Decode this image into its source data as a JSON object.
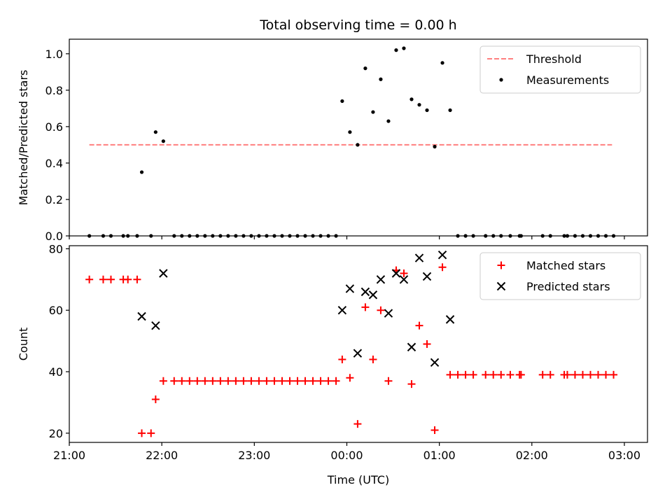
{
  "title": "Total observing time = 0.00 h",
  "chart_data": [
    {
      "type": "scatter",
      "ylabel": "Matched/Predicted stars",
      "ylim": [
        0,
        1.08
      ],
      "yticks": [
        "0.0",
        "0.2",
        "0.4",
        "0.6",
        "0.8",
        "1.0"
      ],
      "ytick_values": [
        0,
        0.2,
        0.4,
        0.6,
        0.8,
        1.0
      ],
      "xlim_hours": [
        21.0,
        27.25
      ],
      "legend_position": "top-right",
      "threshold": {
        "name": "Threshold",
        "x": [
          "21:13",
          "02:52"
        ],
        "y": 0.5,
        "color": "#ff7f7f",
        "style": "dashed"
      },
      "series": [
        {
          "name": "Measurements",
          "color": "#000000",
          "marker": "dot",
          "points": [
            [
              "21:13",
              0
            ],
            [
              "21:22",
              0
            ],
            [
              "21:27",
              0
            ],
            [
              "21:35",
              0
            ],
            [
              "21:38",
              0
            ],
            [
              "21:44",
              0
            ],
            [
              "21:47",
              0.35
            ],
            [
              "21:53",
              0
            ],
            [
              "21:56",
              0.57
            ],
            [
              "22:01",
              0.52
            ],
            [
              "22:08",
              0
            ],
            [
              "22:13",
              0
            ],
            [
              "22:18",
              0
            ],
            [
              "22:23",
              0
            ],
            [
              "22:28",
              0
            ],
            [
              "22:33",
              0
            ],
            [
              "22:38",
              0
            ],
            [
              "22:43",
              0
            ],
            [
              "22:48",
              0
            ],
            [
              "22:53",
              0
            ],
            [
              "22:58",
              0
            ],
            [
              "23:03",
              0
            ],
            [
              "23:08",
              0
            ],
            [
              "23:13",
              0
            ],
            [
              "23:18",
              0
            ],
            [
              "23:23",
              0
            ],
            [
              "23:28",
              0
            ],
            [
              "23:33",
              0
            ],
            [
              "23:38",
              0
            ],
            [
              "23:43",
              0
            ],
            [
              "23:48",
              0
            ],
            [
              "23:53",
              0
            ],
            [
              "23:57",
              0.74
            ],
            [
              "00:02",
              0.57
            ],
            [
              "00:07",
              0.5
            ],
            [
              "00:12",
              0.92
            ],
            [
              "00:17",
              0.68
            ],
            [
              "00:22",
              0.86
            ],
            [
              "00:27",
              0.63
            ],
            [
              "00:32",
              1.02
            ],
            [
              "00:37",
              1.03
            ],
            [
              "00:42",
              0.75
            ],
            [
              "00:47",
              0.72
            ],
            [
              "00:52",
              0.69
            ],
            [
              "00:57",
              0.49
            ],
            [
              "01:02",
              0.95
            ],
            [
              "01:07",
              0.69
            ],
            [
              "01:12",
              0
            ],
            [
              "01:17",
              0
            ],
            [
              "01:22",
              0
            ],
            [
              "01:30",
              0
            ],
            [
              "01:35",
              0
            ],
            [
              "01:40",
              0
            ],
            [
              "01:46",
              0
            ],
            [
              "01:52",
              0
            ],
            [
              "01:53",
              0
            ],
            [
              "02:07",
              0
            ],
            [
              "02:12",
              0
            ],
            [
              "02:21",
              0
            ],
            [
              "02:23",
              0
            ],
            [
              "02:28",
              0
            ],
            [
              "02:33",
              0
            ],
            [
              "02:38",
              0
            ],
            [
              "02:43",
              0
            ],
            [
              "02:48",
              0
            ],
            [
              "02:53",
              0
            ]
          ]
        }
      ]
    },
    {
      "type": "scatter",
      "ylabel": "Count",
      "xlabel": "Time (UTC)",
      "ylim": [
        17,
        81
      ],
      "yticks": [
        "20",
        "40",
        "60",
        "80"
      ],
      "ytick_values": [
        20,
        40,
        60,
        80
      ],
      "xlim_hours": [
        21.0,
        27.25
      ],
      "xticks": [
        "21:00",
        "22:00",
        "23:00",
        "00:00",
        "01:00",
        "02:00",
        "03:00"
      ],
      "xtick_hours": [
        21,
        22,
        23,
        24,
        25,
        26,
        27
      ],
      "legend_position": "top-right",
      "series": [
        {
          "name": "Matched stars",
          "color": "#ff0000",
          "marker": "plus",
          "points": [
            [
              "21:13",
              70
            ],
            [
              "21:22",
              70
            ],
            [
              "21:27",
              70
            ],
            [
              "21:35",
              70
            ],
            [
              "21:38",
              70
            ],
            [
              "21:44",
              70
            ],
            [
              "21:47",
              20
            ],
            [
              "21:53",
              20
            ],
            [
              "21:56",
              31
            ],
            [
              "22:01",
              37
            ],
            [
              "22:08",
              37
            ],
            [
              "22:13",
              37
            ],
            [
              "22:18",
              37
            ],
            [
              "22:23",
              37
            ],
            [
              "22:28",
              37
            ],
            [
              "22:33",
              37
            ],
            [
              "22:38",
              37
            ],
            [
              "22:43",
              37
            ],
            [
              "22:48",
              37
            ],
            [
              "22:53",
              37
            ],
            [
              "22:58",
              37
            ],
            [
              "23:03",
              37
            ],
            [
              "23:08",
              37
            ],
            [
              "23:13",
              37
            ],
            [
              "23:18",
              37
            ],
            [
              "23:23",
              37
            ],
            [
              "23:28",
              37
            ],
            [
              "23:33",
              37
            ],
            [
              "23:38",
              37
            ],
            [
              "23:43",
              37
            ],
            [
              "23:48",
              37
            ],
            [
              "23:53",
              37
            ],
            [
              "23:57",
              44
            ],
            [
              "00:02",
              38
            ],
            [
              "00:07",
              23
            ],
            [
              "00:12",
              61
            ],
            [
              "00:17",
              44
            ],
            [
              "00:22",
              60
            ],
            [
              "00:27",
              37
            ],
            [
              "00:32",
              73
            ],
            [
              "00:37",
              72
            ],
            [
              "00:42",
              36
            ],
            [
              "00:47",
              55
            ],
            [
              "00:52",
              49
            ],
            [
              "00:57",
              21
            ],
            [
              "01:02",
              74
            ],
            [
              "01:07",
              39
            ],
            [
              "01:12",
              39
            ],
            [
              "01:17",
              39
            ],
            [
              "01:22",
              39
            ],
            [
              "01:30",
              39
            ],
            [
              "01:35",
              39
            ],
            [
              "01:40",
              39
            ],
            [
              "01:46",
              39
            ],
            [
              "01:52",
              39
            ],
            [
              "01:53",
              39
            ],
            [
              "02:07",
              39
            ],
            [
              "02:12",
              39
            ],
            [
              "02:21",
              39
            ],
            [
              "02:23",
              39
            ],
            [
              "02:28",
              39
            ],
            [
              "02:33",
              39
            ],
            [
              "02:38",
              39
            ],
            [
              "02:43",
              39
            ],
            [
              "02:48",
              39
            ],
            [
              "02:53",
              39
            ]
          ]
        },
        {
          "name": "Predicted stars",
          "color": "#000000",
          "marker": "x",
          "points": [
            [
              "21:47",
              58
            ],
            [
              "21:56",
              55
            ],
            [
              "22:01",
              72
            ],
            [
              "23:57",
              60
            ],
            [
              "00:02",
              67
            ],
            [
              "00:07",
              46
            ],
            [
              "00:12",
              66
            ],
            [
              "00:17",
              65
            ],
            [
              "00:22",
              70
            ],
            [
              "00:27",
              59
            ],
            [
              "00:32",
              72
            ],
            [
              "00:37",
              70
            ],
            [
              "00:42",
              48
            ],
            [
              "00:47",
              77
            ],
            [
              "00:52",
              71
            ],
            [
              "00:57",
              43
            ],
            [
              "01:02",
              78
            ],
            [
              "01:07",
              57
            ]
          ]
        }
      ]
    }
  ]
}
